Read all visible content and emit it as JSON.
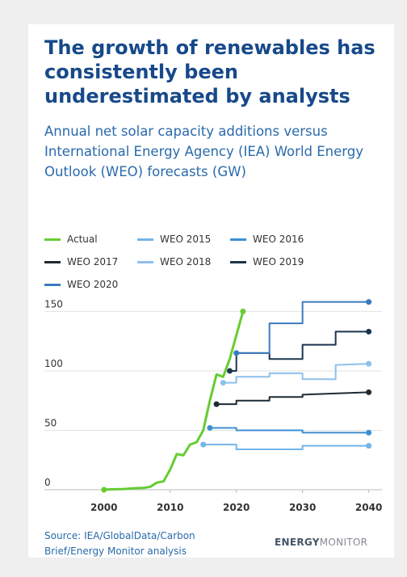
{
  "chart_data": {
    "type": "line",
    "title": "The growth of renewables has consistently been underestimated by analysts",
    "subtitle": "Annual net solar capacity additions versus International Energy Agency (IEA) World Energy Outlook (WEO) forecasts (GW)",
    "source": "Source: IEA/GlobalData/Carbon Brief/Energy Monitor analysis",
    "logo": [
      "ENERGY",
      "MONITOR"
    ],
    "xlim": [
      1991,
      2042
    ],
    "xticks": [
      2000,
      2010,
      2020,
      2030,
      2040
    ],
    "ylim": [
      0,
      170
    ],
    "yticks": [
      0,
      50,
      100,
      150
    ],
    "grid": true,
    "series": [
      {
        "name": "Actual",
        "color": "#66cc33",
        "x": [
          2000,
          2001,
          2002,
          2003,
          2004,
          2005,
          2006,
          2007,
          2008,
          2009,
          2010,
          2011,
          2012,
          2013,
          2014,
          2015,
          2016,
          2017,
          2018,
          2019,
          2020,
          2021
        ],
        "values": [
          0,
          0.3,
          0.4,
          0.6,
          1,
          1.4,
          1.5,
          2.5,
          6,
          7,
          17,
          30,
          29,
          38,
          40,
          50,
          75,
          97,
          95,
          110,
          130,
          150
        ]
      },
      {
        "name": "WEO 2015",
        "color": "#74b4e8",
        "x": [
          2015,
          2020,
          2020,
          2030,
          2030,
          2040
        ],
        "values": [
          38,
          38,
          34,
          34,
          37,
          37
        ]
      },
      {
        "name": "WEO 2016",
        "color": "#3d8fd1",
        "x": [
          2016,
          2020,
          2020,
          2030,
          2030,
          2040
        ],
        "values": [
          52,
          52,
          50,
          50,
          48,
          48
        ]
      },
      {
        "name": "WEO 2017",
        "color": "#1f2a33",
        "x": [
          2017,
          2020,
          2020,
          2025,
          2025,
          2030,
          2030,
          2040
        ],
        "values": [
          72,
          72,
          75,
          75,
          78,
          78,
          80,
          82
        ]
      },
      {
        "name": "WEO 2018",
        "color": "#8ec0ec",
        "x": [
          2018,
          2020,
          2020,
          2025,
          2025,
          2030,
          2030,
          2035,
          2035,
          2040
        ],
        "values": [
          90,
          90,
          95,
          95,
          98,
          98,
          93,
          93,
          105,
          106
        ]
      },
      {
        "name": "WEO 2019",
        "color": "#1a3550",
        "x": [
          2019,
          2020,
          2020,
          2025,
          2025,
          2030,
          2030,
          2035,
          2035,
          2040
        ],
        "values": [
          100,
          100,
          115,
          115,
          110,
          110,
          122,
          122,
          133,
          133
        ]
      },
      {
        "name": "WEO 2020",
        "color": "#3a7bbf",
        "x": [
          2020,
          2025,
          2025,
          2030,
          2030,
          2040
        ],
        "values": [
          115,
          115,
          140,
          140,
          158,
          158
        ]
      }
    ]
  }
}
